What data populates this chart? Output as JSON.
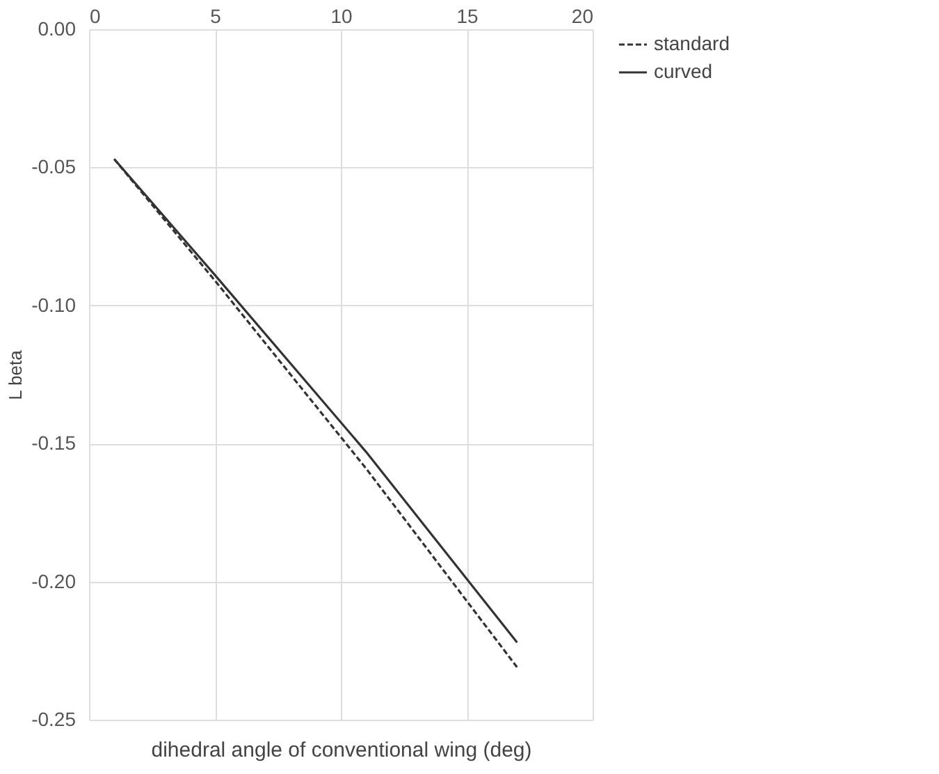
{
  "chart_data": {
    "type": "line",
    "xlabel": "dihedral angle of conventional wing (deg)",
    "ylabel": "L beta",
    "xlim": [
      0,
      20
    ],
    "xticks": [
      0,
      5,
      10,
      15,
      20
    ],
    "ylim": [
      -0.25,
      0
    ],
    "yticks": [
      -0.25,
      {
        "value": -0.2,
        "label": "-0.20"
      },
      -0.15,
      {
        "value": -0.1,
        "label": "-0.10"
      },
      -0.05,
      {
        "value": 0,
        "label": "0.00"
      }
    ],
    "grid": true,
    "legend": "right",
    "series": [
      {
        "name": "standard",
        "color": "#333333",
        "line_style": "dashed",
        "x": [
          1,
          5,
          11,
          17
        ],
        "values": [
          -0.047,
          -0.091,
          -0.159,
          -0.231
        ]
      },
      {
        "name": "curved",
        "color": "#333333",
        "line_style": "solid",
        "x": [
          1,
          5,
          11,
          17
        ],
        "values": [
          -0.047,
          -0.089,
          -0.153,
          -0.222
        ]
      }
    ]
  }
}
